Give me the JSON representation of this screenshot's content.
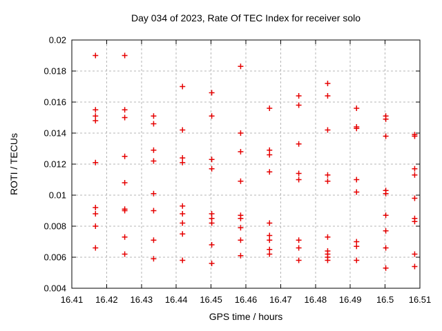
{
  "page": {
    "background": "#ffffff",
    "border_color": "#000000",
    "text_color": "#000000"
  },
  "chart_data": {
    "type": "scatter",
    "title": "Day 034 of 2023, Rate Of TEC Index for receiver solo",
    "xlabel": "GPS time / hours",
    "ylabel": "ROTI / TECUs",
    "xlim": [
      16.41,
      16.51
    ],
    "ylim": [
      0.004,
      0.02
    ],
    "xtick_values": [
      16.41,
      16.42,
      16.43,
      16.44,
      16.45,
      16.46,
      16.47,
      16.48,
      16.49,
      16.5,
      16.51
    ],
    "xtick_labels": [
      "16.41",
      "16.42",
      "16.43",
      "16.44",
      "16.45",
      "16.46",
      "16.47",
      "16.48",
      "16.49",
      "16.5",
      "16.51"
    ],
    "ytick_values": [
      0.004,
      0.006,
      0.008,
      0.01,
      0.012,
      0.014,
      0.016,
      0.018,
      0.02
    ],
    "ytick_labels": [
      "0.004",
      "0.006",
      "0.008",
      "0.01",
      "0.012",
      "0.014",
      "0.016",
      "0.018",
      "0.02"
    ],
    "grid": true,
    "grid_style": "dashed",
    "grid_color": "#b5b5b5",
    "legend": "none",
    "marker": "plus",
    "marker_color": "#e60000",
    "series": [
      {
        "name": "ROTI",
        "points": [
          [
            16.4168,
            0.019
          ],
          [
            16.4168,
            0.0155
          ],
          [
            16.4168,
            0.0151
          ],
          [
            16.4168,
            0.0148
          ],
          [
            16.4168,
            0.0121
          ],
          [
            16.4168,
            0.0092
          ],
          [
            16.4168,
            0.0088
          ],
          [
            16.4168,
            0.008
          ],
          [
            16.4168,
            0.0066
          ],
          [
            16.4252,
            0.019
          ],
          [
            16.4252,
            0.0155
          ],
          [
            16.4252,
            0.015
          ],
          [
            16.4252,
            0.0125
          ],
          [
            16.4252,
            0.0108
          ],
          [
            16.4252,
            0.0091
          ],
          [
            16.4252,
            0.009
          ],
          [
            16.4252,
            0.0073
          ],
          [
            16.4252,
            0.0062
          ],
          [
            16.4335,
            0.0151
          ],
          [
            16.4335,
            0.0146
          ],
          [
            16.4335,
            0.0129
          ],
          [
            16.4335,
            0.0122
          ],
          [
            16.4335,
            0.0101
          ],
          [
            16.4335,
            0.009
          ],
          [
            16.4335,
            0.0071
          ],
          [
            16.4335,
            0.0059
          ],
          [
            16.4418,
            0.017
          ],
          [
            16.4418,
            0.0142
          ],
          [
            16.4418,
            0.0124
          ],
          [
            16.4418,
            0.0121
          ],
          [
            16.4418,
            0.0093
          ],
          [
            16.4418,
            0.0088
          ],
          [
            16.4418,
            0.0082
          ],
          [
            16.4418,
            0.0075
          ],
          [
            16.4418,
            0.0058
          ],
          [
            16.4502,
            0.0166
          ],
          [
            16.4502,
            0.0151
          ],
          [
            16.4502,
            0.0123
          ],
          [
            16.4502,
            0.0117
          ],
          [
            16.4502,
            0.0088
          ],
          [
            16.4502,
            0.0085
          ],
          [
            16.4502,
            0.0082
          ],
          [
            16.4502,
            0.0068
          ],
          [
            16.4502,
            0.0056
          ],
          [
            16.4585,
            0.0183
          ],
          [
            16.4585,
            0.014
          ],
          [
            16.4585,
            0.0128
          ],
          [
            16.4585,
            0.0109
          ],
          [
            16.4585,
            0.0087
          ],
          [
            16.4585,
            0.0085
          ],
          [
            16.4585,
            0.0079
          ],
          [
            16.4585,
            0.0071
          ],
          [
            16.4585,
            0.0061
          ],
          [
            16.4668,
            0.0156
          ],
          [
            16.4668,
            0.0129
          ],
          [
            16.4668,
            0.0126
          ],
          [
            16.4668,
            0.0115
          ],
          [
            16.4668,
            0.0082
          ],
          [
            16.4668,
            0.0074
          ],
          [
            16.4668,
            0.0071
          ],
          [
            16.4668,
            0.0065
          ],
          [
            16.4668,
            0.0062
          ],
          [
            16.4752,
            0.0164
          ],
          [
            16.4752,
            0.0158
          ],
          [
            16.4752,
            0.0133
          ],
          [
            16.4752,
            0.0114
          ],
          [
            16.4752,
            0.011
          ],
          [
            16.4752,
            0.0071
          ],
          [
            16.4752,
            0.0066
          ],
          [
            16.4752,
            0.0058
          ],
          [
            16.4835,
            0.0172
          ],
          [
            16.4835,
            0.0164
          ],
          [
            16.4835,
            0.0142
          ],
          [
            16.4835,
            0.0113
          ],
          [
            16.4835,
            0.0109
          ],
          [
            16.4835,
            0.0073
          ],
          [
            16.4835,
            0.0064
          ],
          [
            16.4835,
            0.0062
          ],
          [
            16.4835,
            0.006
          ],
          [
            16.4835,
            0.0058
          ],
          [
            16.4918,
            0.0156
          ],
          [
            16.4918,
            0.0144
          ],
          [
            16.4918,
            0.0143
          ],
          [
            16.4918,
            0.011
          ],
          [
            16.4918,
            0.0102
          ],
          [
            16.4918,
            0.007
          ],
          [
            16.4918,
            0.0067
          ],
          [
            16.4918,
            0.0058
          ],
          [
            16.5002,
            0.0151
          ],
          [
            16.5002,
            0.0149
          ],
          [
            16.5002,
            0.0138
          ],
          [
            16.5002,
            0.0103
          ],
          [
            16.5002,
            0.0101
          ],
          [
            16.5002,
            0.0087
          ],
          [
            16.5002,
            0.0077
          ],
          [
            16.5002,
            0.0066
          ],
          [
            16.5002,
            0.0053
          ],
          [
            16.5085,
            0.0139
          ],
          [
            16.5085,
            0.0138
          ],
          [
            16.5085,
            0.0117
          ],
          [
            16.5085,
            0.0113
          ],
          [
            16.5085,
            0.0098
          ],
          [
            16.5085,
            0.0085
          ],
          [
            16.5085,
            0.0083
          ],
          [
            16.5085,
            0.0062
          ],
          [
            16.5085,
            0.0054
          ]
        ]
      }
    ]
  }
}
